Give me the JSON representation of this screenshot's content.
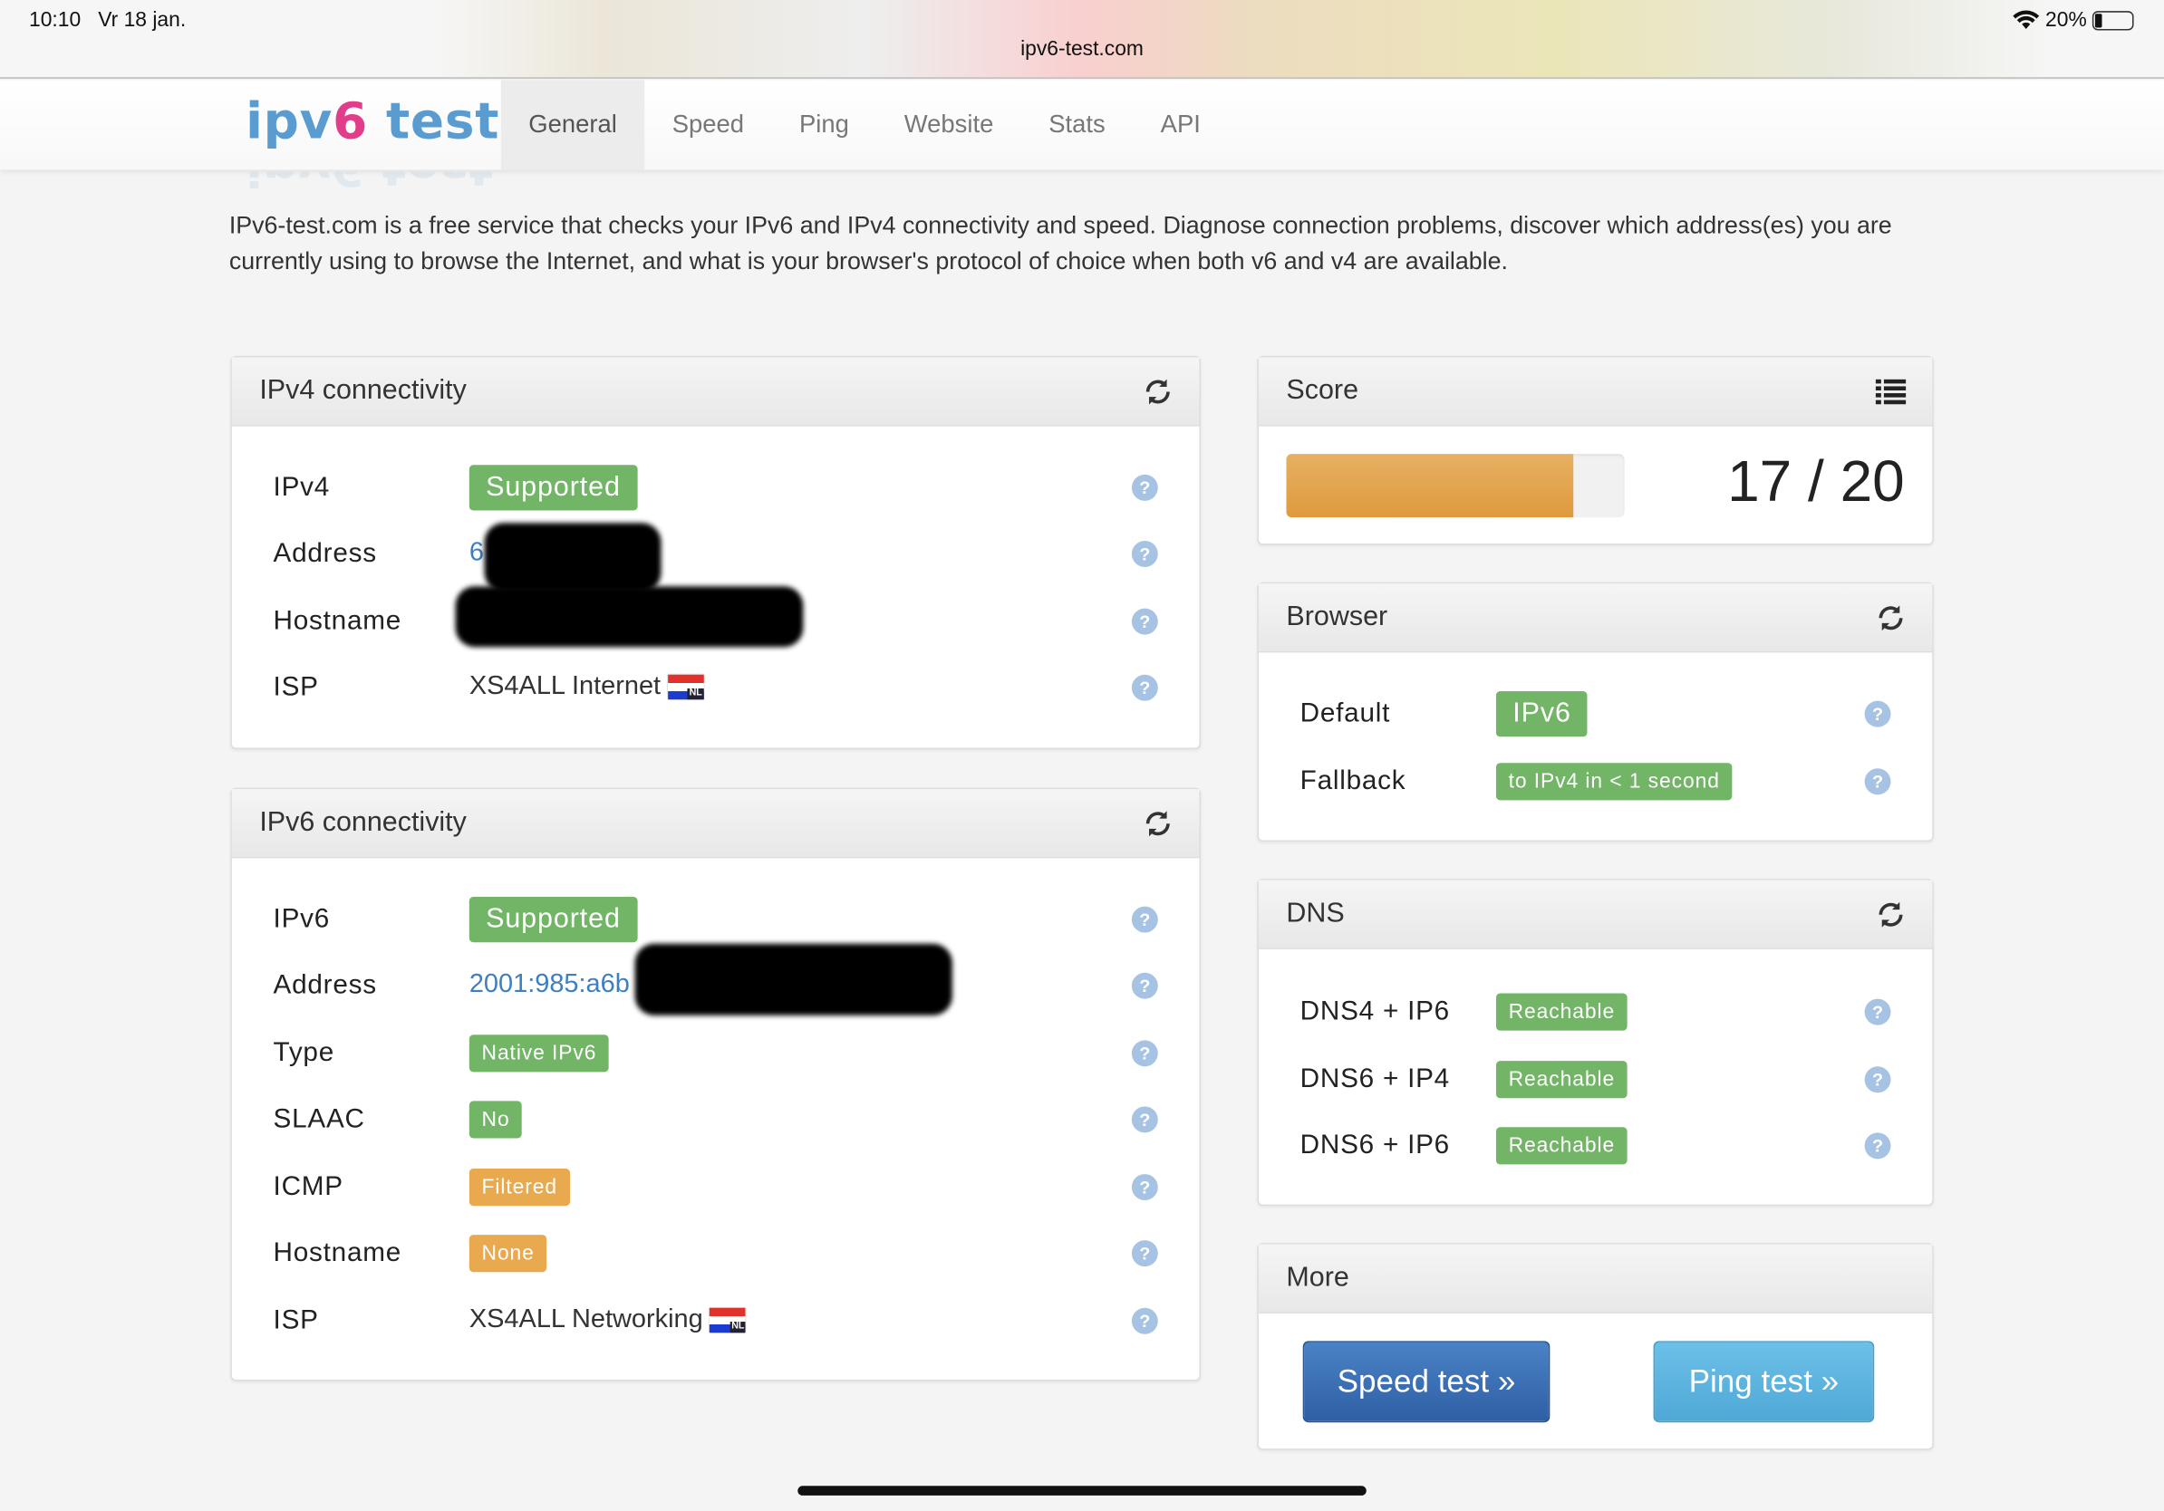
{
  "status_bar": {
    "time": "10:10",
    "date": "Vr 18 jan.",
    "url": "ipv6-test.com",
    "battery": "20%",
    "battery_level": 0.2
  },
  "nav": {
    "logo_prefix": "ipv",
    "logo_six": "6",
    "logo_suffix": " test",
    "tabs": [
      "General",
      "Speed",
      "Ping",
      "Website",
      "Stats",
      "API"
    ],
    "active_tab": "General"
  },
  "intro": "IPv6-test.com is a free service that checks your IPv6 and IPv4 connectivity and speed. Diagnose connection problems, discover which address(es) you are currently using to browse the Internet, and what is your browser's protocol of choice when both v6 and v4 are available.",
  "colors": {
    "success": "#72b566",
    "warning": "#e9a94e",
    "help": "#a7c3e4",
    "primary": "#3b6db3",
    "info": "#5fb6e0",
    "brand_blue": "#5a9ccf",
    "brand_pink": "#e23d8a"
  },
  "ipv4": {
    "title": "IPv4 connectivity",
    "rows": [
      {
        "label": "IPv4",
        "value": "Supported"
      },
      {
        "label": "Address",
        "value": "6"
      },
      {
        "label": "Hostname",
        "value": ""
      },
      {
        "label": "ISP",
        "value": "XS4ALL Internet",
        "flag": "NL"
      }
    ]
  },
  "ipv6": {
    "title": "IPv6 connectivity",
    "rows": [
      {
        "label": "IPv6",
        "value": "Supported"
      },
      {
        "label": "Address",
        "value": "2001:985:a6b"
      },
      {
        "label": "Type",
        "value": "Native IPv6"
      },
      {
        "label": "SLAAC",
        "value": "No"
      },
      {
        "label": "ICMP",
        "value": "Filtered"
      },
      {
        "label": "Hostname",
        "value": "None"
      },
      {
        "label": "ISP",
        "value": "XS4ALL Networking",
        "flag": "NL"
      }
    ]
  },
  "score": {
    "title": "Score",
    "value": 17,
    "max": 20,
    "text": "17 / 20"
  },
  "browser": {
    "title": "Browser",
    "rows": [
      {
        "label": "Default",
        "value": "IPv6"
      },
      {
        "label": "Fallback",
        "value": "to IPv4 in < 1 second"
      }
    ]
  },
  "dns": {
    "title": "DNS",
    "rows": [
      {
        "label": "DNS4 + IP6",
        "value": "Reachable"
      },
      {
        "label": "DNS6 + IP4",
        "value": "Reachable"
      },
      {
        "label": "DNS6 + IP6",
        "value": "Reachable"
      }
    ]
  },
  "more": {
    "title": "More",
    "speed_button": "Speed test »",
    "ping_button": "Ping test »"
  },
  "help_glyph": "?"
}
